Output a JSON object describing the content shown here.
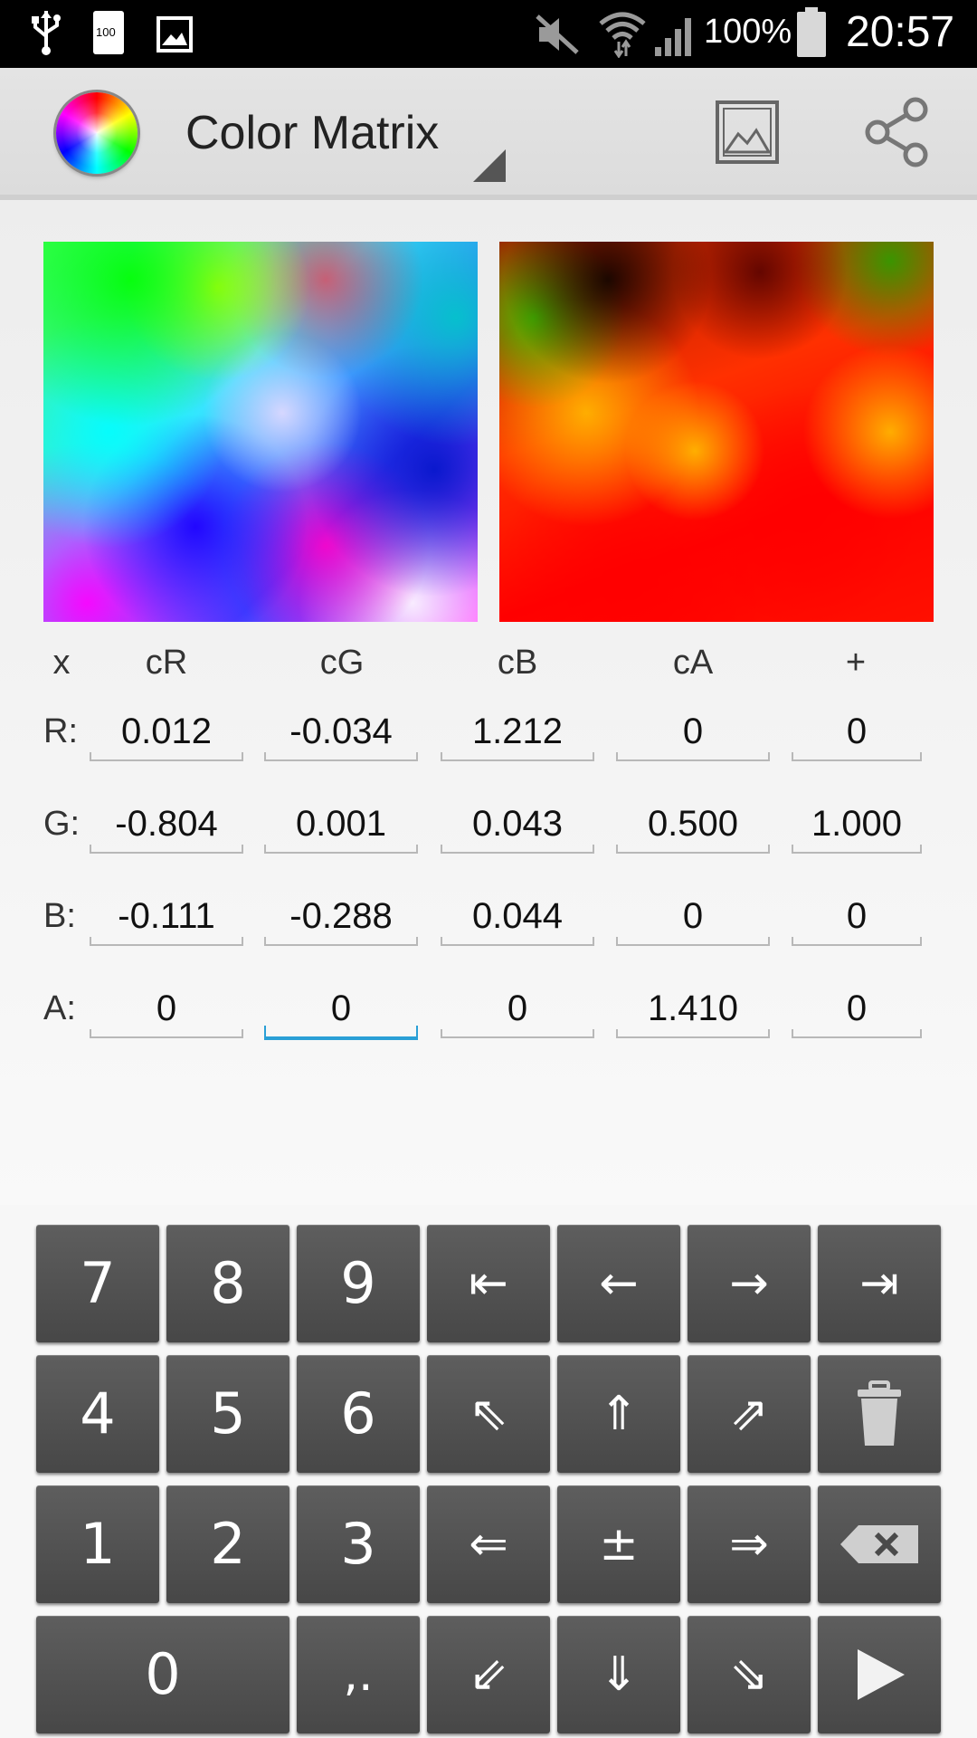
{
  "status_bar": {
    "battery_percent": "100%",
    "time": "20:57",
    "battery_saver_label": "100",
    "icons": [
      "usb-icon",
      "battery-saver-icon",
      "gallery-icon",
      "mute-icon",
      "wifi-icon",
      "signal-icon",
      "battery-icon"
    ]
  },
  "action_bar": {
    "title": "Color Matrix",
    "icons": [
      "color-wheel-logo",
      "image-icon",
      "share-icon"
    ]
  },
  "matrix": {
    "headers": [
      "x",
      "cR",
      "cG",
      "cB",
      "cA",
      "+"
    ],
    "rows": [
      {
        "label": "R:",
        "values": [
          "0.012",
          "-0.034",
          "1.212",
          "0",
          "0"
        ]
      },
      {
        "label": "G:",
        "values": [
          "-0.804",
          "0.001",
          "0.043",
          "0.500",
          "1.000"
        ]
      },
      {
        "label": "B:",
        "values": [
          "-0.111",
          "-0.288",
          "0.044",
          "0",
          "0"
        ]
      },
      {
        "label": "A:",
        "values": [
          "0",
          "0",
          "0",
          "1.410",
          "0"
        ]
      }
    ],
    "focused_cell": "A-cG"
  },
  "keypad": {
    "row1": [
      "7",
      "8",
      "9",
      "⇤",
      "←",
      "→",
      "⇥"
    ],
    "row2": [
      "4",
      "5",
      "6",
      "⇖",
      "⇑",
      "⇗"
    ],
    "row3": [
      "1",
      "2",
      "3",
      "⇐",
      "±",
      "⇒"
    ],
    "row4": [
      "0",
      ",.",
      "⇙",
      "⇓",
      "⇘"
    ],
    "icon_keys": [
      "trash-icon",
      "backspace-icon",
      "next-icon"
    ]
  },
  "colors": {
    "status_bar": "#000000",
    "action_bar": "#e0e0e0",
    "focus_accent": "#2a9fd6",
    "key_bg": "#4f4f4f"
  }
}
